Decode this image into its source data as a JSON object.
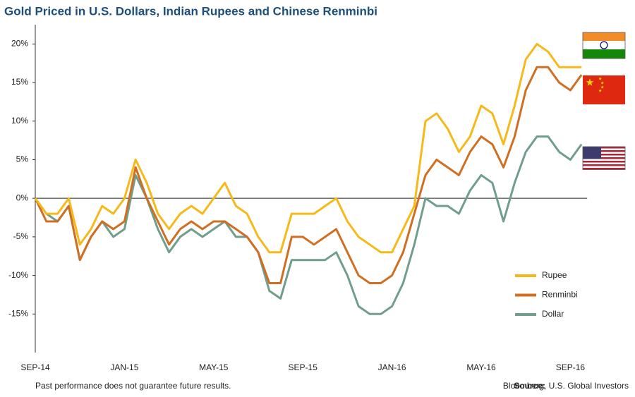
{
  "chart_data": {
    "type": "line",
    "title": "Gold Priced in U.S. Dollars, Indian Rupees and Chinese Renminbi",
    "footnote": "Past performance does not guarantee future results.",
    "source_label": "Source:",
    "source": "Bloomberg, U.S. Global Investors",
    "categories": [
      "SEP-14",
      null,
      null,
      null,
      null,
      null,
      null,
      null,
      "JAN-15",
      null,
      null,
      null,
      null,
      null,
      null,
      null,
      "MAY-15",
      null,
      null,
      null,
      null,
      null,
      null,
      null,
      "SEP-15",
      null,
      null,
      null,
      null,
      null,
      null,
      null,
      "JAN-16",
      null,
      null,
      null,
      null,
      null,
      null,
      null,
      "MAY-16",
      null,
      null,
      null,
      null,
      null,
      null,
      null,
      "SEP-16",
      null
    ],
    "series": [
      {
        "name": "Rupee",
        "color": "#f6b919",
        "values": [
          0,
          -2,
          -2,
          0,
          -6,
          -4,
          -1,
          -2,
          0,
          5,
          2,
          -2,
          -4,
          -2,
          -1,
          -2,
          0,
          2,
          -1,
          -2,
          -5,
          -7,
          -7,
          -2,
          -2,
          -2,
          -1,
          0,
          -3,
          -5,
          -6,
          -7,
          -7,
          -4,
          -1,
          10,
          11,
          9,
          6,
          8,
          12,
          11,
          7,
          12,
          18,
          20,
          19,
          17,
          17,
          17
        ]
      },
      {
        "name": "Renminbi",
        "color": "#d06e22",
        "values": [
          0,
          -3,
          -3,
          -1,
          -8,
          -5,
          -3,
          -4,
          -3,
          4,
          0,
          -3,
          -6,
          -4,
          -3,
          -4,
          -3,
          -3,
          -4,
          -5,
          -7,
          -11,
          -11,
          -5,
          -5,
          -6,
          -5,
          -4,
          -7,
          -10,
          -11,
          -11,
          -10,
          -7,
          -2,
          3,
          5,
          4,
          3,
          6,
          8,
          7,
          4,
          8,
          14,
          17,
          17,
          15,
          14,
          16
        ]
      },
      {
        "name": "Dollar",
        "color": "#6f9f8c",
        "values": [
          0,
          -2,
          -3,
          -1,
          -8,
          -5,
          -3,
          -5,
          -4,
          3,
          0,
          -4,
          -7,
          -5,
          -4,
          -5,
          -4,
          -3,
          -5,
          -5,
          -7,
          -12,
          -13,
          -8,
          -8,
          -8,
          -8,
          -7,
          -10,
          -14,
          -15,
          -15,
          -14,
          -11,
          -6,
          0,
          -1,
          -1,
          -2,
          1,
          3,
          2,
          -3,
          2,
          6,
          8,
          8,
          6,
          5,
          7
        ]
      }
    ],
    "ylim": [
      -20,
      22.5
    ],
    "yticks": [
      {
        "value": -15,
        "label": "-15%"
      },
      {
        "value": -10,
        "label": "-10%"
      },
      {
        "value": -5,
        "label": "-5%"
      },
      {
        "value": 0,
        "label": "0%"
      },
      {
        "value": 5,
        "label": "5%"
      },
      {
        "value": 10,
        "label": "10%"
      },
      {
        "value": 15,
        "label": "15%"
      },
      {
        "value": 20,
        "label": "20%"
      }
    ],
    "legend": "lower right"
  }
}
